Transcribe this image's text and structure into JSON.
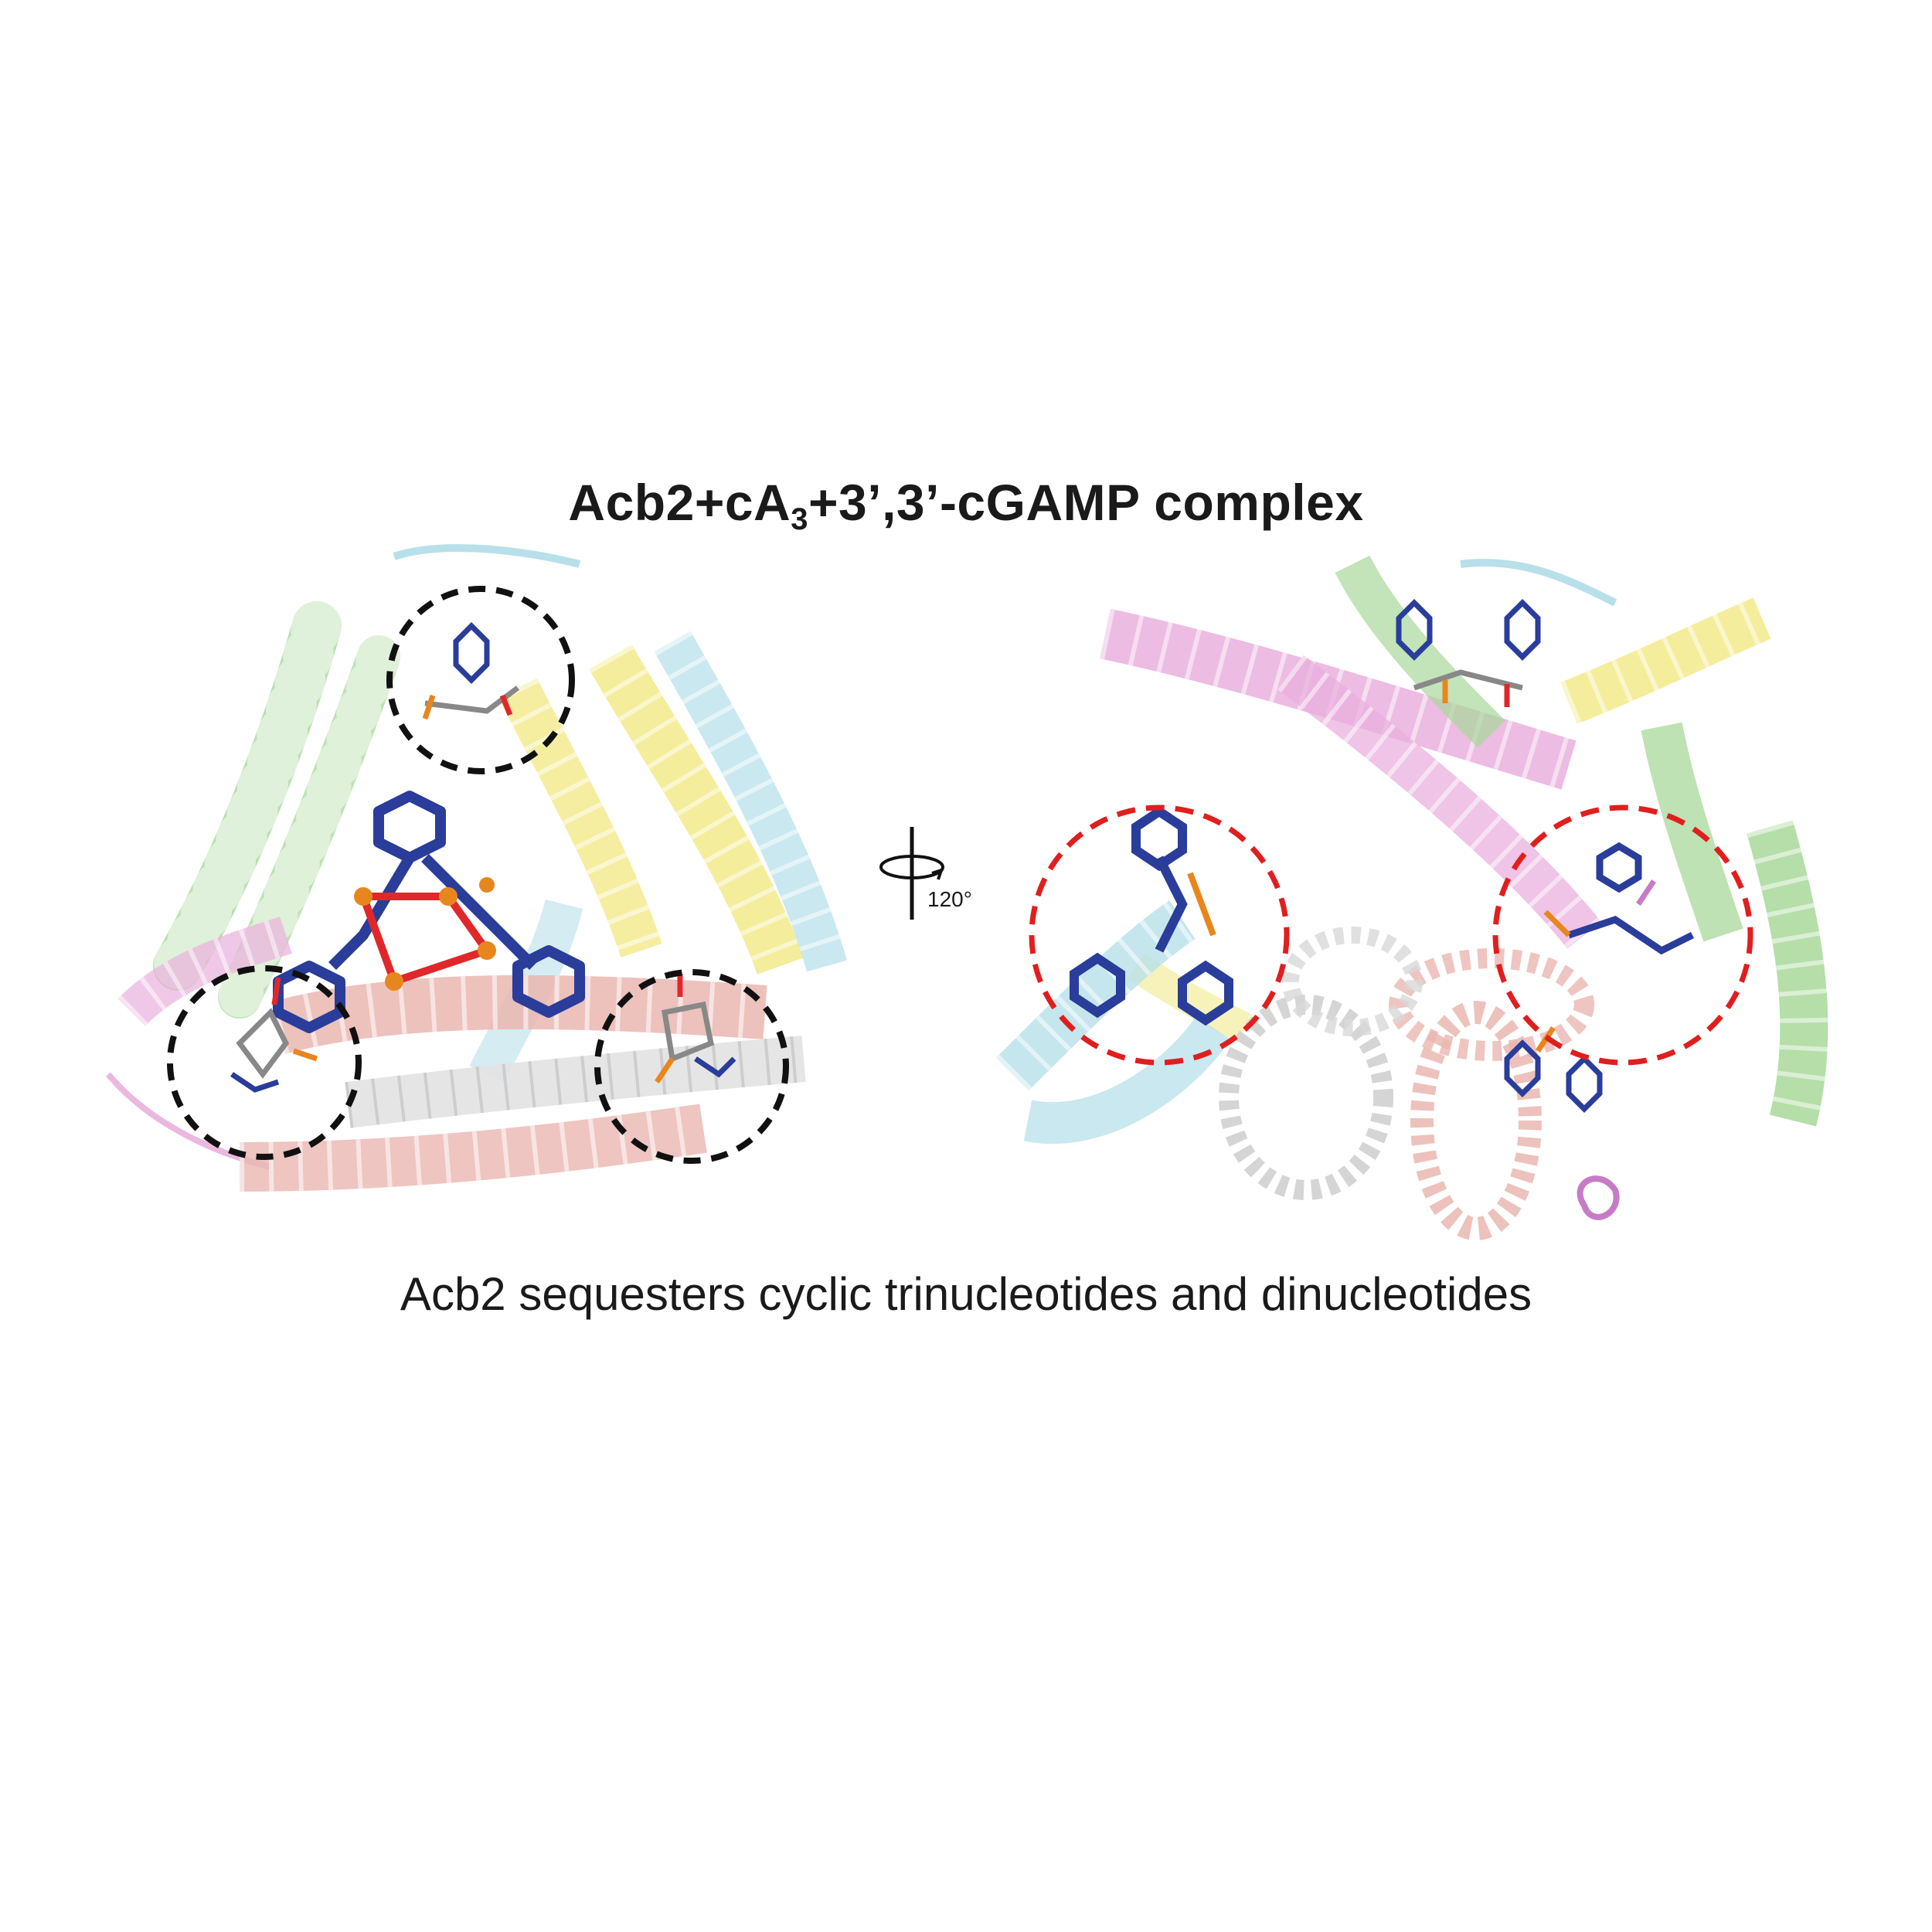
{
  "title": {
    "main": "Acb2+cA",
    "sub": "3",
    "rest": "+3’,3’-cGAMP complex"
  },
  "caption": "Acb2 sequesters cyclic trinucleotides and dinucleotides",
  "rotation": {
    "label": "120°"
  },
  "colors": {
    "chain_green": "#a8d89a",
    "chain_yellow": "#f2ea8a",
    "chain_cyan": "#b8e0ea",
    "chain_pink": "#e9b0dd",
    "chain_salmon": "#eab7b0",
    "chain_white": "#e6e6e6",
    "ligand_blue": "#2a3d9a",
    "phosphate_orange": "#e8861e",
    "oxygen_red": "#e0282a",
    "circle_black": "#111111",
    "circle_red": "#e11e1e"
  },
  "panels": [
    {
      "view": "top view",
      "highlight": "black dashed circles",
      "circle_count": 3
    },
    {
      "view": "side view",
      "highlight": "red dashed circles",
      "circle_count": 2
    }
  ]
}
